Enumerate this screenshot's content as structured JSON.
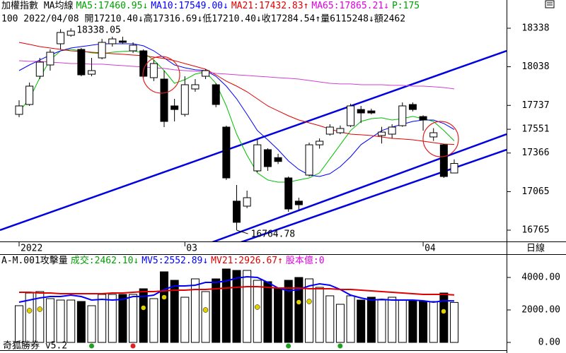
{
  "chart_data": [
    {
      "type": "candlestick",
      "header": [
        {
          "text": "加權指數 MA均線",
          "color": "#000000"
        },
        {
          "text": "MA5:17460.95↓",
          "color": "#00a000"
        },
        {
          "text": "MA10:17549.00↓",
          "color": "#0000ff"
        },
        {
          "text": "MA21:17432.83↑",
          "color": "#e00000"
        },
        {
          "text": "MA65:17865.21↓",
          "color": "#e000e0"
        },
        {
          "text": "P:175",
          "color": "#00a000"
        }
      ],
      "info": "100 2022/04/08 開17210.40↓高17316.69↓低17210.40↓收17284.54↑量6115248↓額2462",
      "period_label": "日線",
      "categories": [
        "2022",
        null,
        null,
        null,
        null,
        null,
        null,
        null,
        null,
        null,
        null,
        null,
        null,
        null,
        null,
        null,
        "03",
        null,
        null,
        null,
        null,
        null,
        null,
        null,
        null,
        null,
        null,
        null,
        null,
        null,
        null,
        null,
        null,
        null,
        null,
        null,
        null,
        null,
        null,
        "04",
        null,
        null,
        null
      ],
      "open": [
        17667,
        17744,
        17964,
        18052,
        18217,
        18283,
        18173,
        17980,
        18107,
        18217,
        18239,
        18162,
        18162,
        17953,
        17942,
        17733,
        17667,
        17865,
        17964,
        17898,
        17568,
        16991,
        16952,
        17227,
        17392,
        17330,
        17172,
        16991,
        17194,
        17430,
        17513,
        17524,
        17579,
        17705,
        17694,
        17502,
        17513,
        17579,
        17744,
        17650,
        17491,
        17430,
        17210.4
      ],
      "high": [
        17777,
        17915,
        18107,
        18173,
        18330,
        18338.05,
        18184,
        18107,
        18255,
        18272,
        18272,
        18228,
        18173,
        18091,
        18008,
        17788,
        17964,
        17942,
        18019,
        17909,
        17579,
        17117,
        17073,
        17469,
        17403,
        17360,
        17183,
        17018,
        17447,
        17480,
        17590,
        17580,
        17750,
        17733,
        17711,
        17570,
        17590,
        17760,
        17760,
        17660,
        17560,
        17436,
        17316.69
      ],
      "low": [
        17645,
        17733,
        17942,
        18008,
        18173,
        18272,
        17964,
        17964,
        18096,
        18195,
        18217,
        18145,
        17953,
        17926,
        17568,
        17612,
        17650,
        17843,
        17942,
        17722,
        17156,
        16764.78,
        16936,
        17216,
        17227,
        17280,
        16908,
        16925,
        17183,
        17400,
        17502,
        17513,
        17568,
        17600,
        17667,
        17440,
        17480,
        17570,
        17690,
        17540,
        17460,
        17172,
        17210.4
      ],
      "close": [
        17733,
        17887,
        18074,
        18151,
        18305,
        18316,
        17975,
        18008,
        18228,
        18255,
        18228,
        18206,
        17964,
        18063,
        17612,
        17705,
        17898,
        17898,
        18008,
        17744,
        17172,
        16826,
        17018,
        17430,
        17260,
        17300,
        16930,
        16963,
        17430,
        17458,
        17568,
        17557,
        17733,
        17678,
        17678,
        17529,
        17568,
        17733,
        17705,
        17623,
        17524,
        17183,
        17284.54
      ],
      "up_color": "#ffffff",
      "down_color": "#000000",
      "series": [
        {
          "color": "#00c000",
          "values": [
            17689,
            17788,
            17953,
            18091,
            18162,
            18173,
            18162,
            18146,
            18140,
            18151,
            18157,
            18162,
            18146,
            18091,
            18008,
            17909,
            17937,
            17981,
            17997,
            17909,
            17733,
            17513,
            17348,
            17211,
            17156,
            17139,
            17139,
            17156,
            17172,
            17211,
            17321,
            17431,
            17541,
            17612,
            17634,
            17640,
            17623,
            17634,
            17651,
            17634,
            17612,
            17541,
            17460.95
          ]
        },
        {
          "color": "#0000ff",
          "values": [
            18008,
            18052,
            18091,
            18129,
            18162,
            18184,
            18195,
            18206,
            18217,
            18217,
            18217,
            18217,
            18201,
            18162,
            18107,
            18052,
            18030,
            18014,
            18008,
            17964,
            17887,
            17788,
            17667,
            17541,
            17469,
            17392,
            17304,
            17238,
            17194,
            17183,
            17205,
            17260,
            17337,
            17431,
            17486,
            17541,
            17568,
            17590,
            17612,
            17623,
            17623,
            17596,
            17549
          ]
        },
        {
          "color": "#e00000",
          "values": [
            18228,
            18212,
            18195,
            18184,
            18173,
            18162,
            18157,
            18151,
            18146,
            18140,
            18135,
            18129,
            18124,
            18113,
            18102,
            18085,
            18063,
            18041,
            18019,
            17975,
            17926,
            17887,
            17843,
            17788,
            17733,
            17694,
            17656,
            17623,
            17601,
            17579,
            17552,
            17530,
            17513,
            17508,
            17502,
            17491,
            17480,
            17475,
            17469,
            17458,
            17447,
            17436,
            17432.83
          ]
        },
        {
          "color": "#d040d0",
          "values": [
            18085,
            18080,
            18080,
            18074,
            18069,
            18063,
            18063,
            18058,
            18058,
            18052,
            18047,
            18041,
            18036,
            18030,
            18025,
            18014,
            18008,
            18003,
            17997,
            17986,
            17981,
            17975,
            17970,
            17964,
            17959,
            17953,
            17948,
            17942,
            17931,
            17920,
            17909,
            17904,
            17904,
            17898,
            17898,
            17898,
            17893,
            17893,
            17887,
            17887,
            17882,
            17876,
            17865.21
          ]
        }
      ],
      "ylim": [
        16677,
        18558
      ],
      "yticks": [
        18338,
        18038,
        17737,
        17551,
        17366,
        17065,
        16765
      ]
    },
    {
      "type": "bar",
      "header": [
        {
          "text": "A-M.001攻擊量",
          "color": "#000000"
        },
        {
          "text": "成交:2462.10↓",
          "color": "#00a000"
        },
        {
          "text": "MV5:2552.89↓",
          "color": "#0000ff"
        },
        {
          "text": "MV21:2926.67↑",
          "color": "#e00000"
        },
        {
          "text": "股本億:0",
          "color": "#e000e0"
        }
      ],
      "footer": "奇狐勝券 v5.2",
      "values": [
        2261,
        3043,
        3130,
        2696,
        2609,
        2609,
        2522,
        2261,
        2957,
        2957,
        2957,
        2957,
        3304,
        2696,
        4348,
        3826,
        2783,
        3913,
        3130,
        3913,
        4522,
        4435,
        4435,
        3826,
        3739,
        3304,
        3826,
        4000,
        3913,
        3391,
        2870,
        2348,
        2870,
        2609,
        2783,
        2609,
        2783,
        2609,
        2609,
        2522,
        2522,
        3043,
        2462.1
      ],
      "series": [
        {
          "color": "#0000ff",
          "values": [
            2478,
            2609,
            2739,
            2826,
            2826,
            2913,
            2826,
            2609,
            2652,
            2609,
            2652,
            2826,
            2826,
            2913,
            3261,
            3478,
            3478,
            3522,
            3696,
            3696,
            3783,
            3957,
            4043,
            4000,
            3696,
            3348,
            3174,
            3261,
            3478,
            3609,
            3522,
            3261,
            2913,
            2739,
            2609,
            2652,
            2609,
            2609,
            2609,
            2565,
            2478,
            2565,
            2552.89
          ]
        },
        {
          "color": "#e00000",
          "values": [
            3087,
            3087,
            3043,
            3043,
            3000,
            3000,
            3000,
            3000,
            3000,
            3043,
            3043,
            3087,
            3130,
            3130,
            3174,
            3217,
            3217,
            3261,
            3261,
            3304,
            3348,
            3391,
            3435,
            3435,
            3391,
            3348,
            3348,
            3348,
            3304,
            3304,
            3304,
            3261,
            3261,
            3217,
            3174,
            3130,
            3087,
            3043,
            3000,
            2957,
            2957,
            2957,
            2926.67
          ]
        }
      ],
      "ylim": [
        -478,
        5435
      ],
      "yticks": [
        {
          "value": 4000,
          "label": "4000.00"
        },
        {
          "value": 2000,
          "label": "2000.00"
        },
        {
          "value": 0,
          "label": "0.00"
        }
      ]
    }
  ]
}
